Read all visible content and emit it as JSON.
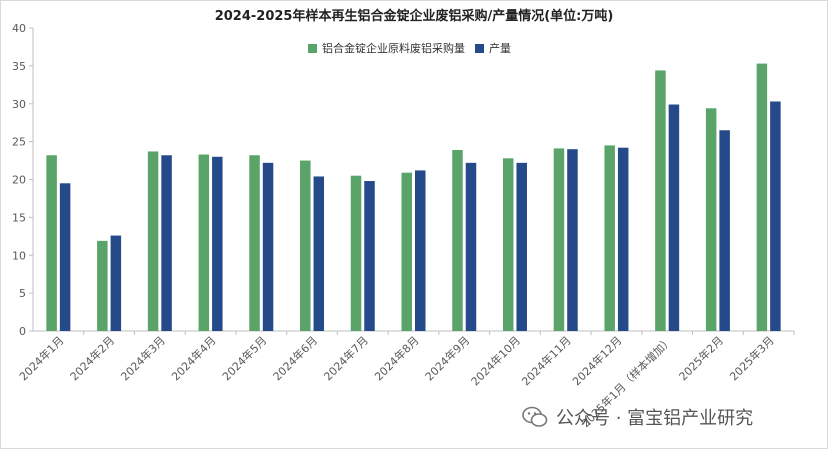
{
  "chart_data": {
    "type": "bar",
    "title": "2024-2025年样本再生铝合金锭企业废铝采购/产量情况(单位:万吨)",
    "categories": [
      "2024年1月",
      "2024年2月",
      "2024年3月",
      "2024年4月",
      "2024年5月",
      "2024年6月",
      "2024年7月",
      "2024年8月",
      "2024年9月",
      "2024年10月",
      "2024年11月",
      "2024年12月",
      "2025年1月（样本增加）",
      "2025年2月",
      "2025年3月"
    ],
    "series": [
      {
        "name": "铝合金锭企业原料废铝采购量",
        "color": "#5aa469",
        "values": [
          23.2,
          11.9,
          23.7,
          23.3,
          23.2,
          22.5,
          20.5,
          20.9,
          23.9,
          22.8,
          24.1,
          24.5,
          34.4,
          29.4,
          35.3
        ]
      },
      {
        "name": "产量",
        "color": "#254a8a",
        "values": [
          19.5,
          12.6,
          23.2,
          23.0,
          22.2,
          20.4,
          19.8,
          21.2,
          22.2,
          22.2,
          24.0,
          24.2,
          29.9,
          26.5,
          30.3
        ]
      }
    ],
    "ylim": [
      0,
      40
    ],
    "yticks": [
      0,
      5,
      10,
      15,
      20,
      25,
      30,
      35,
      40
    ],
    "grid": false,
    "legend_position": "top-center"
  },
  "watermark": {
    "text": "公众号 · 富宝铝产业研究",
    "icon": "wechat-icon"
  }
}
